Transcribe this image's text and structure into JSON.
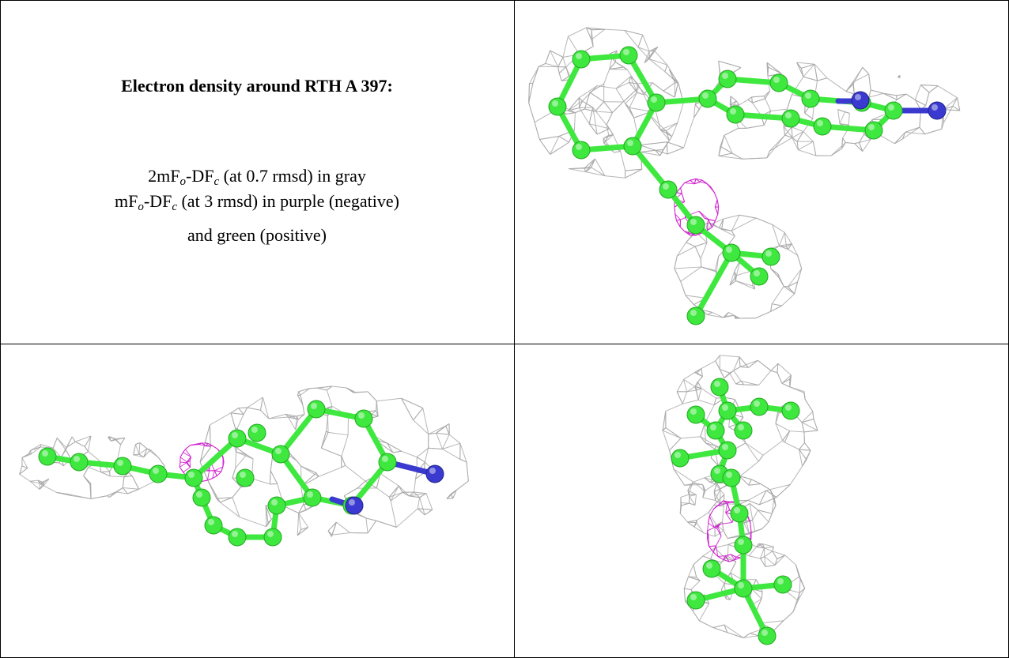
{
  "caption": {
    "title": "Electron density around RTH A 397:",
    "lines": [
      [
        "2mF",
        "o",
        "-DF",
        "c",
        " (at 0.7 rmsd) in gray"
      ],
      [
        "mF",
        "o",
        "-DF",
        "c",
        " (at 3 rmsd) in purple (negative)"
      ],
      [
        "and green (positive)"
      ]
    ]
  }
}
